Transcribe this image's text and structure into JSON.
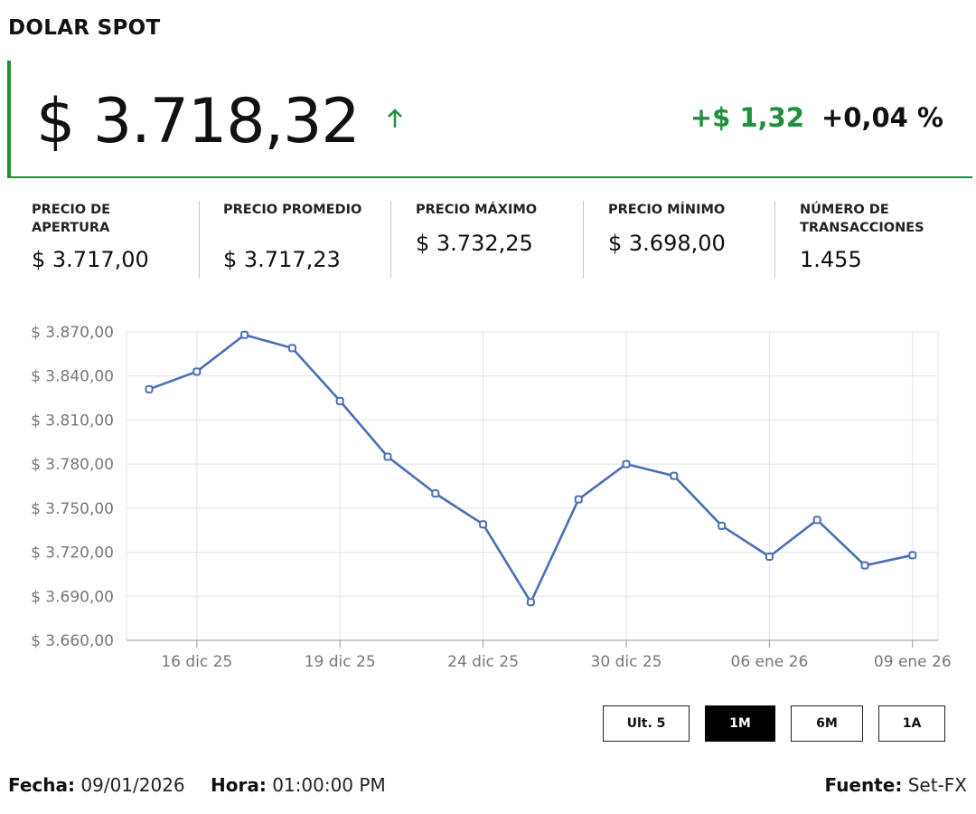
{
  "header": {
    "title": "DOLAR SPOT"
  },
  "price": {
    "value": "$ 3.718,32",
    "change_abs": "+$ 1,32",
    "change_pct": "+0,04 %",
    "up_color": "#1e8f3a"
  },
  "stats": [
    {
      "label": "PRECIO DE APERTURA",
      "value": "$ 3.717,00"
    },
    {
      "label": "PRECIO PROMEDIO",
      "value": "$ 3.717,23"
    },
    {
      "label": "PRECIO MÁXIMO",
      "value": "$ 3.732,25"
    },
    {
      "label": "PRECIO MÍNIMO",
      "value": "$ 3.698,00"
    },
    {
      "label": "NÚMERO DE TRANSACCIONES",
      "value": "1.455"
    }
  ],
  "chart_data": {
    "type": "line",
    "y_tick_labels": [
      "$ 3.870,00",
      "$ 3.840,00",
      "$ 3.810,00",
      "$ 3.780,00",
      "$ 3.750,00",
      "$ 3.720,00",
      "$ 3.690,00",
      "$ 3.660,00"
    ],
    "y_ticks": [
      3870,
      3840,
      3810,
      3780,
      3750,
      3720,
      3690,
      3660
    ],
    "ylim": [
      3660,
      3870
    ],
    "x_tick_labels": [
      "16 dic 25",
      "19 dic 25",
      "24 dic 25",
      "30 dic 25",
      "06 ene 26",
      "09 ene 26"
    ],
    "x_tick_index": [
      1,
      4,
      7,
      10,
      13,
      16
    ],
    "series": [
      {
        "color": "#4a6fb5",
        "values": [
          3831,
          3843,
          3868,
          3859,
          3823,
          3785,
          3760,
          3739,
          3686,
          3756,
          3780,
          3772,
          3738,
          3717,
          3742,
          3711,
          3718
        ]
      }
    ],
    "grid": true
  },
  "range_buttons": [
    {
      "label": "Ult. 5",
      "active": false
    },
    {
      "label": "1M",
      "active": true
    },
    {
      "label": "6M",
      "active": false
    },
    {
      "label": "1A",
      "active": false
    }
  ],
  "footer": {
    "fecha_label": "Fecha:",
    "fecha_value": "09/01/2026",
    "hora_label": "Hora:",
    "hora_value": "01:00:00 PM",
    "fuente_label": "Fuente:",
    "fuente_value": "Set-FX"
  }
}
